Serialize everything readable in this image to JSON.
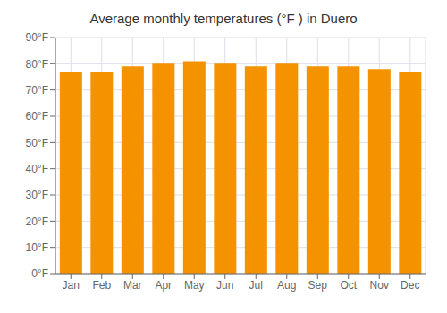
{
  "chart_data": {
    "type": "bar",
    "title": "Average monthly temperatures (°F ) in Duero",
    "categories": [
      "Jan",
      "Feb",
      "Mar",
      "Apr",
      "May",
      "Jun",
      "Jul",
      "Aug",
      "Sep",
      "Oct",
      "Nov",
      "Dec"
    ],
    "values": [
      77,
      77,
      79,
      80,
      81,
      80,
      79,
      80,
      79,
      79,
      78,
      77
    ],
    "color": "#F59200",
    "ylim": [
      0,
      90
    ],
    "yticks": [
      {
        "value": 0,
        "label": "0°F"
      },
      {
        "value": 10,
        "label": "10°F"
      },
      {
        "value": 20,
        "label": "20°F"
      },
      {
        "value": 30,
        "label": "30°F"
      },
      {
        "value": 40,
        "label": "40°F"
      },
      {
        "value": 50,
        "label": "50°F"
      },
      {
        "value": 60,
        "label": "60°F"
      },
      {
        "value": 70,
        "label": "70°F"
      },
      {
        "value": 80,
        "label": "80°F"
      },
      {
        "value": 90,
        "label": "90°F"
      }
    ],
    "grid": true
  }
}
